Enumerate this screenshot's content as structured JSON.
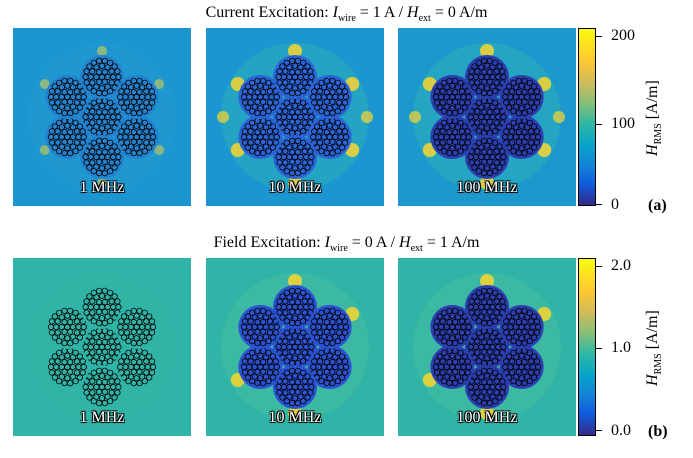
{
  "row_a": {
    "title_prefix": "Current Excitation: ",
    "title_i_sym": "I",
    "title_i_sub": "wire",
    "title_mid": " = 1 A / ",
    "title_h_sym": "H",
    "title_h_sub": "ext",
    "title_suffix": " = 0 A/m",
    "panels": [
      {
        "label": "1 MHz",
        "background": "#1b96d0",
        "inner": "#2383cf"
      },
      {
        "label": "10 MHz",
        "background": "#1b96d0",
        "inner": "#2a64d6"
      },
      {
        "label": "100 MHz",
        "background": "#1c98cd",
        "inner": "#2b3fb0"
      }
    ],
    "colorbar": {
      "ticks": [
        "200",
        "100",
        "0"
      ],
      "label_sym": "H",
      "label_sub": "RMS",
      "label_unit": " [A/m]"
    },
    "tag": "(a)"
  },
  "row_b": {
    "title_prefix": "Field Excitation: ",
    "title_i_sym": "I",
    "title_i_sub": "wire",
    "title_mid": " = 0 A / ",
    "title_h_sym": "H",
    "title_h_sub": "ext",
    "title_suffix": " = 1 A/m",
    "panels": [
      {
        "label": "1 MHz",
        "background": "#2fb4a7",
        "inner": "#2fb4a7"
      },
      {
        "label": "10 MHz",
        "background": "#2fb4a7",
        "inner": "#2b52d0"
      },
      {
        "label": "100 MHz",
        "background": "#2fb4a7",
        "inner": "#2c3fb0"
      }
    ],
    "colorbar": {
      "ticks": [
        "2.0",
        "1.0",
        "0.0"
      ],
      "label_sym": "H",
      "label_sub": "RMS",
      "label_unit": " [A/m]"
    },
    "tag": "(b)"
  },
  "colors": {
    "hot": "#f9d62f",
    "strand_stroke": "#000000",
    "gap_a": "#1677c8",
    "gap_b": "#3ab8a0"
  }
}
